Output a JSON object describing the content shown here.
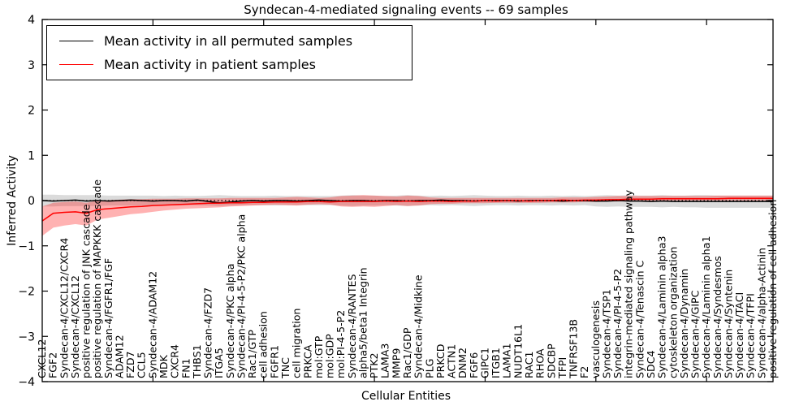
{
  "figure": {
    "title": "Syndecan-4-mediated signaling events -- 69 samples",
    "xlabel": "Cellular Entities",
    "ylabel": "Inferred Activity"
  },
  "legend": {
    "items": [
      {
        "label": "Mean activity in all permuted samples",
        "color": "#000000"
      },
      {
        "label": "Mean activity in patient samples",
        "color": "#ff0000"
      }
    ]
  },
  "chart_data": {
    "type": "line",
    "title": "Syndecan-4-mediated signaling events -- 69 samples",
    "xlabel": "Cellular Entities",
    "ylabel": "Inferred Activity",
    "ylim": [
      -4,
      4
    ],
    "yticks": [
      -4,
      -3,
      -2,
      -1,
      0,
      1,
      2,
      3,
      4
    ],
    "x_major_tick_every": 10,
    "grid": false,
    "legend_position": "upper left",
    "zero_line": true,
    "background": "#ffffff",
    "categories": [
      "CXCL12",
      "FGF2",
      "Syndecan-4/CXCL12/CXCR4",
      "Syndecan-4/CXCL12",
      "positive regulation of JNK cascade",
      "positive regulation of MAPKKK cascade",
      "Syndecan-4/FGFR1/FGF",
      "ADAM12",
      "FZD7",
      "CCL5",
      "Syndecan-4/ADAM12",
      "MDK",
      "CXCR4",
      "FN1",
      "THBS1",
      "Syndecan-4/FZD7",
      "ITGA5",
      "Syndecan-4/PKC alpha",
      "Syndecan-4/PI-4-5-P2/PKC alpha",
      "Rac1/GTP",
      "cell adhesion",
      "FGFR1",
      "TNC",
      "cell migration",
      "PRKCA",
      "mol:GTP",
      "mol:GDP",
      "mol:PI-4-5-P2",
      "Syndecan-4/RANTES",
      "alpha5/beta1 Integrin",
      "PTK2",
      "LAMA3",
      "MMP9",
      "Rac1/GDP",
      "Syndecan-4/Midkine",
      "PLG",
      "PRKCD",
      "ACTN1",
      "DNM2",
      "FGF6",
      "GIPC1",
      "ITGB1",
      "LAMA1",
      "NUDT16L1",
      "RAC1",
      "RHOA",
      "SDCBP",
      "TFPI",
      "TNFRSF13B",
      "F2",
      "vasculogenesis",
      "Syndecan-4/TSP1",
      "Syndecan-4/PI-4-5-P2",
      "integrin-mediated signaling pathway",
      "Syndecan-4/Tenascin C",
      "SDC4",
      "Syndecan-4/Laminin alpha3",
      "cytoskeleton organization",
      "Syndecan-4/Dynamin",
      "Syndecan-4/GIPC",
      "Syndecan-4/Laminin alpha1",
      "Syndecan-4/Syndesmos",
      "Syndecan-4/Syntenin",
      "Syndecan-4/TACI",
      "Syndecan-4/TFPI",
      "Syndecan-4/alpha-Actinin",
      "positive regulation of cell adhesion"
    ],
    "series": [
      {
        "name": "Mean activity in all permuted samples",
        "line_color": "#000000",
        "band_color": "#000000",
        "band_opacity": 0.14,
        "values": [
          0.0,
          -0.01,
          0.0,
          0.01,
          -0.01,
          0.0,
          -0.01,
          0.0,
          0.01,
          0.0,
          -0.01,
          0.0,
          0.0,
          -0.01,
          0.01,
          -0.02,
          -0.05,
          -0.03,
          -0.01,
          0.0,
          -0.01,
          0.0,
          0.0,
          -0.01,
          0.0,
          0.01,
          0.0,
          -0.01,
          0.0,
          0.0,
          -0.01,
          0.0,
          0.0,
          -0.01,
          0.0,
          0.0,
          0.01,
          0.0,
          0.0,
          -0.01,
          0.0,
          0.0,
          0.0,
          -0.01,
          0.0,
          0.0,
          0.0,
          -0.01,
          0.0,
          0.0,
          -0.01,
          -0.01,
          0.0,
          -0.01,
          -0.01,
          -0.02,
          -0.01,
          -0.02,
          -0.02,
          -0.02,
          -0.02,
          -0.02,
          -0.02,
          -0.02,
          -0.02,
          -0.02,
          -0.02
        ],
        "band_low": [
          -0.13,
          -0.13,
          -0.12,
          -0.12,
          -0.12,
          -0.12,
          -0.11,
          -0.11,
          -0.11,
          -0.11,
          -0.11,
          -0.1,
          -0.11,
          -0.1,
          -0.1,
          -0.11,
          -0.12,
          -0.11,
          -0.1,
          -0.1,
          -0.1,
          -0.11,
          -0.1,
          -0.1,
          -0.1,
          -0.1,
          -0.1,
          -0.11,
          -0.12,
          -0.11,
          -0.11,
          -0.1,
          -0.11,
          -0.12,
          -0.11,
          -0.1,
          -0.11,
          -0.1,
          -0.11,
          -0.12,
          -0.11,
          -0.1,
          -0.1,
          -0.11,
          -0.1,
          -0.1,
          -0.11,
          -0.1,
          -0.11,
          -0.1,
          -0.13,
          -0.14,
          -0.13,
          -0.14,
          -0.14,
          -0.14,
          -0.15,
          -0.14,
          -0.15,
          -0.15,
          -0.16,
          -0.16,
          -0.16,
          -0.16,
          -0.16,
          -0.16,
          -0.16
        ],
        "band_high": [
          0.13,
          0.13,
          0.12,
          0.12,
          0.12,
          0.12,
          0.11,
          0.11,
          0.11,
          0.11,
          0.11,
          0.1,
          0.11,
          0.1,
          0.1,
          0.11,
          0.12,
          0.11,
          0.1,
          0.1,
          0.1,
          0.11,
          0.1,
          0.1,
          0.1,
          0.1,
          0.1,
          0.11,
          0.12,
          0.11,
          0.11,
          0.1,
          0.11,
          0.12,
          0.11,
          0.1,
          0.11,
          0.1,
          0.11,
          0.12,
          0.11,
          0.1,
          0.1,
          0.11,
          0.1,
          0.1,
          0.11,
          0.1,
          0.11,
          0.1,
          0.11,
          0.12,
          0.11,
          0.12,
          0.11,
          0.11,
          0.12,
          0.11,
          0.11,
          0.12,
          0.12,
          0.11,
          0.11,
          0.11,
          0.11,
          0.11,
          0.11
        ]
      },
      {
        "name": "Mean activity in patient samples",
        "line_color": "#ff0000",
        "band_color": "#ff0000",
        "band_opacity": 0.3,
        "values": [
          -0.45,
          -0.28,
          -0.26,
          -0.25,
          -0.28,
          -0.2,
          -0.18,
          -0.16,
          -0.14,
          -0.13,
          -0.11,
          -0.1,
          -0.09,
          -0.08,
          -0.07,
          -0.06,
          -0.06,
          -0.05,
          -0.05,
          -0.04,
          -0.04,
          -0.03,
          -0.03,
          -0.03,
          -0.02,
          -0.02,
          -0.03,
          -0.02,
          -0.02,
          -0.02,
          -0.02,
          -0.01,
          -0.02,
          -0.01,
          -0.02,
          -0.01,
          -0.01,
          -0.02,
          -0.01,
          -0.01,
          0.0,
          -0.01,
          0.0,
          0.0,
          -0.01,
          0.0,
          0.0,
          0.01,
          0.0,
          0.01,
          0.01,
          0.02,
          0.02,
          0.03,
          0.03,
          0.03,
          0.04,
          0.04,
          0.04,
          0.04,
          0.04,
          0.04,
          0.05,
          0.05,
          0.05,
          0.05,
          0.05
        ],
        "band_low": [
          -0.78,
          -0.6,
          -0.55,
          -0.52,
          -0.55,
          -0.42,
          -0.38,
          -0.34,
          -0.3,
          -0.28,
          -0.25,
          -0.22,
          -0.2,
          -0.18,
          -0.17,
          -0.16,
          -0.15,
          -0.13,
          -0.12,
          -0.11,
          -0.1,
          -0.09,
          -0.1,
          -0.11,
          -0.09,
          -0.08,
          -0.09,
          -0.13,
          -0.14,
          -0.13,
          -0.14,
          -0.12,
          -0.1,
          -0.12,
          -0.11,
          -0.08,
          -0.07,
          -0.07,
          -0.06,
          -0.06,
          -0.06,
          -0.05,
          -0.05,
          -0.05,
          -0.05,
          -0.05,
          -0.04,
          -0.04,
          -0.04,
          -0.03,
          -0.03,
          -0.02,
          -0.02,
          -0.01,
          -0.01,
          -0.01,
          0.0,
          0.0,
          0.0,
          0.0,
          0.0,
          0.0,
          0.0,
          0.0,
          0.0,
          0.0,
          0.0
        ],
        "band_high": [
          -0.13,
          -0.05,
          -0.03,
          -0.02,
          -0.05,
          0.0,
          0.01,
          0.02,
          0.03,
          0.03,
          0.04,
          0.04,
          0.04,
          0.05,
          0.05,
          0.05,
          0.05,
          0.06,
          0.06,
          0.06,
          0.06,
          0.06,
          0.07,
          0.08,
          0.07,
          0.06,
          0.07,
          0.1,
          0.11,
          0.12,
          0.11,
          0.1,
          0.09,
          0.11,
          0.1,
          0.07,
          0.06,
          0.06,
          0.06,
          0.06,
          0.06,
          0.06,
          0.06,
          0.06,
          0.06,
          0.06,
          0.06,
          0.07,
          0.07,
          0.07,
          0.08,
          0.09,
          0.1,
          0.1,
          0.1,
          0.1,
          0.1,
          0.1,
          0.1,
          0.1,
          0.1,
          0.11,
          0.11,
          0.11,
          0.11,
          0.11,
          0.11
        ]
      }
    ]
  }
}
